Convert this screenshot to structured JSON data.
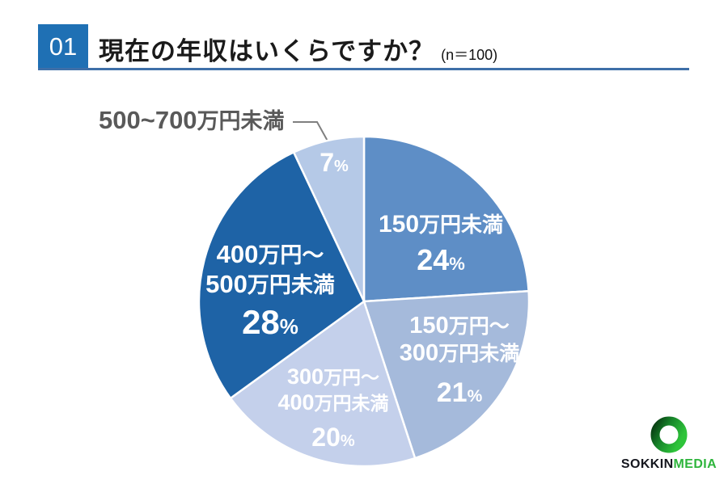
{
  "header": {
    "index_label": "01",
    "title": "現在の年収はいくらですか？",
    "sample_size": "(n＝100)",
    "index_box_color": "#1F70B4",
    "underline_color": "#3E6FA8",
    "title_color": "#1A1A1A"
  },
  "callout": {
    "text": "500~700万円未満",
    "segments": [
      {
        "t": "500~700",
        "c": "n"
      },
      {
        "t": "万円未満",
        "c": "k"
      }
    ],
    "color": "#595959",
    "leader_line_color": "#7F7F7F"
  },
  "chart_data": {
    "type": "pie",
    "title": "現在の年収はいくらですか？",
    "sample_size": 100,
    "start_angle_deg": 0,
    "direction": "clockwise",
    "label_color": "#FFFFFF",
    "slice_border_color": "#FFFFFF",
    "slices": [
      {
        "label": "150万円未満",
        "value": 24,
        "color": "#5E8EC6"
      },
      {
        "label": "150万円～300万円未満",
        "value": 21,
        "color": "#A5BADB"
      },
      {
        "label": "300万円～400万円未満",
        "value": 20,
        "color": "#C4D0EB"
      },
      {
        "label": "400万円～500万円未満",
        "value": 28,
        "color": "#1E63A6"
      },
      {
        "label": "500~700万円未満",
        "value": 7,
        "color": "#B5C9E7"
      }
    ]
  },
  "pie_labels": [
    {
      "name": "label-under-150",
      "lines": [
        [
          {
            "t": "150",
            "c": "n"
          },
          {
            "t": "万円未満",
            "c": "k"
          }
        ],
        [
          {
            "t": "24",
            "c": "p"
          },
          {
            "t": "%",
            "c": "s"
          }
        ]
      ]
    },
    {
      "name": "label-150-300",
      "lines": [
        [
          {
            "t": "150",
            "c": "n"
          },
          {
            "t": "万円～",
            "c": "k"
          }
        ],
        [
          {
            "t": "300",
            "c": "n"
          },
          {
            "t": "万円未満",
            "c": "k"
          }
        ],
        [
          {
            "t": "21",
            "c": "p"
          },
          {
            "t": "%",
            "c": "s"
          }
        ]
      ]
    },
    {
      "name": "label-300-400",
      "lines": [
        [
          {
            "t": "300",
            "c": "n"
          },
          {
            "t": "万円～",
            "c": "k"
          }
        ],
        [
          {
            "t": "400",
            "c": "n"
          },
          {
            "t": "万円未満",
            "c": "k"
          }
        ],
        [
          {
            "t": "20",
            "c": "p"
          },
          {
            "t": "%",
            "c": "s"
          }
        ]
      ]
    },
    {
      "name": "label-400-500",
      "lines": [
        [
          {
            "t": "400",
            "c": "n"
          },
          {
            "t": "万円～",
            "c": "k"
          }
        ],
        [
          {
            "t": "500",
            "c": "n"
          },
          {
            "t": "万円未満",
            "c": "k"
          }
        ],
        [
          {
            "t": "28",
            "c": "p"
          },
          {
            "t": "%",
            "c": "s"
          }
        ]
      ]
    },
    {
      "name": "label-500-700-pct",
      "lines": [
        [
          {
            "t": "7",
            "c": "p"
          },
          {
            "t": "%",
            "c": "s"
          }
        ]
      ]
    }
  ],
  "logo": {
    "brand_primary": "SOKKIN",
    "brand_secondary": "MEDIA",
    "primary_color": "#15171E",
    "secondary_color": "#2EB53C",
    "ring_dark": "#083A12",
    "ring_mid": "#17862A",
    "ring_bright": "#2EC43A"
  }
}
